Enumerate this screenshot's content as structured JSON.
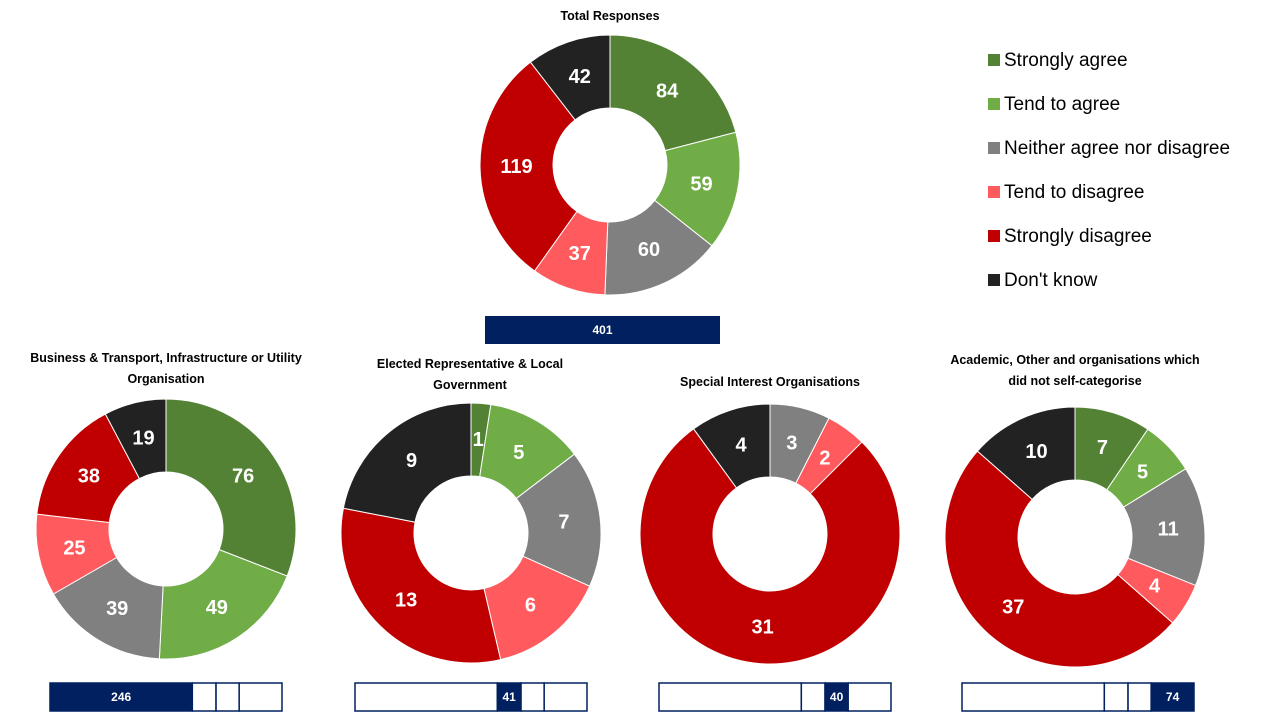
{
  "chart_data": [
    {
      "type": "pie",
      "donut": true,
      "title": "Total Responses",
      "categories": [
        "Strongly agree",
        "Tend to agree",
        "Neither agree nor disagree",
        "Tend to disagree",
        "Strongly disagree",
        "Don't know"
      ],
      "colors": [
        "#548235",
        "#70ad47",
        "#808080",
        "#ff5b5f",
        "#c00000",
        "#222222"
      ],
      "values": [
        84,
        59,
        60,
        37,
        119,
        42
      ],
      "total": 401
    },
    {
      "type": "pie",
      "donut": true,
      "title": "Business & Transport, Infrastructure or Utility Organisation",
      "values": [
        76,
        49,
        39,
        25,
        38,
        19
      ],
      "total": 246
    },
    {
      "type": "pie",
      "donut": true,
      "title": "Elected Representative & Local Government",
      "values": [
        1,
        5,
        7,
        6,
        13,
        9
      ],
      "total": 41
    },
    {
      "type": "pie",
      "donut": true,
      "title": "Special Interest Organisations",
      "values": [
        0,
        0,
        3,
        2,
        31,
        4
      ],
      "total": 40
    },
    {
      "type": "pie",
      "donut": true,
      "title": "Academic, Other and organisations which did not self-categorise",
      "values": [
        7,
        5,
        11,
        4,
        37,
        10
      ],
      "total": 74
    }
  ]
}
